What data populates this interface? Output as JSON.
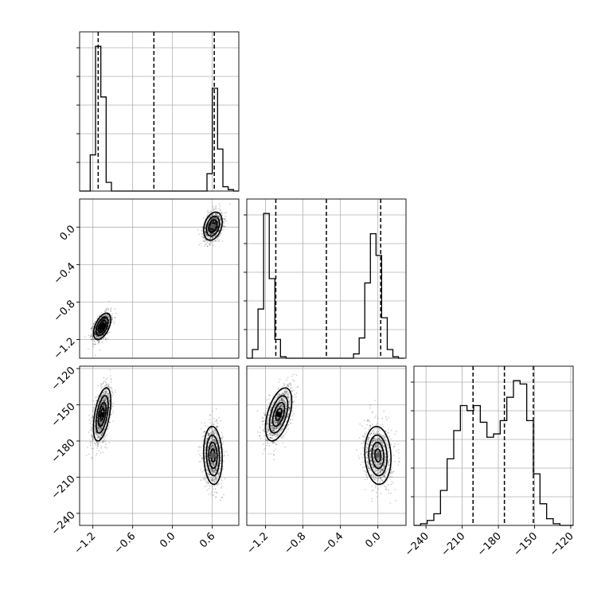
{
  "chart_data": {
    "type": "corner",
    "variables": [
      {
        "range": [
          -1.4,
          1.0
        ],
        "ticks": [
          -1.2,
          -0.6,
          0.0,
          0.6
        ],
        "tick_labels": [
          "−1.2",
          "−0.6",
          "0.0",
          "0.6"
        ],
        "quantiles": [
          -1.12,
          -0.28,
          0.63
        ],
        "hist": {
          "edges": [
            -1.4,
            -1.32,
            -1.24,
            -1.16,
            -1.08,
            -1.0,
            -0.92,
            -0.84,
            -0.76,
            -0.68,
            -0.6,
            -0.52,
            -0.44,
            -0.36,
            -0.28,
            -0.2,
            -0.12,
            -0.04,
            0.04,
            0.12,
            0.2,
            0.28,
            0.36,
            0.44,
            0.52,
            0.6,
            0.68,
            0.76,
            0.84,
            0.92,
            1.0
          ],
          "counts": [
            0,
            0,
            0.25,
            1.0,
            0.65,
            0.06,
            0,
            0,
            0,
            0,
            0,
            0,
            0,
            0,
            0,
            0,
            0,
            0,
            0,
            0,
            0,
            0,
            0,
            0,
            0.12,
            0.71,
            0.29,
            0.03,
            0.01,
            0
          ]
        }
      },
      {
        "range": [
          -1.4,
          0.3
        ],
        "ticks": [
          -1.2,
          -0.8,
          -0.4,
          0.0
        ],
        "tick_labels": [
          "−1.2",
          "−0.8",
          "−0.4",
          "0.0"
        ],
        "quantiles": [
          -1.09,
          -0.55,
          0.03
        ],
        "hist": {
          "edges": [
            -1.4,
            -1.34,
            -1.28,
            -1.22,
            -1.16,
            -1.1,
            -1.04,
            -0.98,
            -0.92,
            -0.86,
            -0.8,
            -0.74,
            -0.68,
            -0.62,
            -0.56,
            -0.5,
            -0.44,
            -0.38,
            -0.32,
            -0.26,
            -0.2,
            -0.14,
            -0.08,
            -0.02,
            0.04,
            0.1,
            0.16,
            0.22,
            0.28
          ],
          "counts": [
            0,
            0.06,
            0.34,
            1.0,
            0.55,
            0.13,
            0.01,
            0,
            0,
            0,
            0,
            0,
            0,
            0,
            0,
            0,
            0,
            0,
            0,
            0.03,
            0.14,
            0.52,
            0.86,
            0.71,
            0.28,
            0.06,
            0.01,
            0
          ]
        }
      },
      {
        "range": [
          -250,
          -118
        ],
        "ticks": [
          -240,
          -210,
          -180,
          -150,
          -120
        ],
        "tick_labels": [
          "−240",
          "−210",
          "−180",
          "−150",
          "−120"
        ],
        "quantiles": [
          -201,
          -175,
          -151
        ],
        "hist": {
          "edges": [
            -250,
            -244.5,
            -239,
            -233.5,
            -228,
            -222.5,
            -217,
            -211.5,
            -206,
            -200.5,
            -195,
            -189.5,
            -184,
            -178.5,
            -173,
            -167.5,
            -162,
            -156.5,
            -151,
            -145.5,
            -140,
            -134.5,
            -129,
            -123.5,
            -118
          ],
          "counts": [
            0,
            0.01,
            0.03,
            0.07,
            0.21,
            0.4,
            0.57,
            0.72,
            0.69,
            0.72,
            0.62,
            0.53,
            0.55,
            0.63,
            0.77,
            0.87,
            0.85,
            0.63,
            0.31,
            0.13,
            0.04,
            0.01,
            0,
            0
          ]
        }
      }
    ],
    "pairs": [
      {
        "x_var": 0,
        "y_var": 1,
        "blobs": [
          {
            "cx": -1.06,
            "cy": -1.06,
            "sx": 0.065,
            "sy": 0.07,
            "rho": 0.5,
            "n": 1300
          },
          {
            "cx": 0.61,
            "cy": 0.01,
            "sx": 0.07,
            "sy": 0.075,
            "rho": 0.3,
            "n": 1100
          }
        ]
      },
      {
        "x_var": 0,
        "y_var": 2,
        "blobs": [
          {
            "cx": -1.06,
            "cy": -158,
            "sx": 0.065,
            "sy": 11,
            "rho": 0.5,
            "n": 1300
          },
          {
            "cx": 0.61,
            "cy": -192,
            "sx": 0.07,
            "sy": 12,
            "rho": -0.1,
            "n": 1100
          }
        ]
      },
      {
        "x_var": 1,
        "y_var": 2,
        "blobs": [
          {
            "cx": -1.06,
            "cy": -158,
            "sx": 0.07,
            "sy": 11,
            "rho": 0.5,
            "n": 1300
          },
          {
            "cx": 0.0,
            "cy": -192,
            "sx": 0.07,
            "sy": 12,
            "rho": -0.1,
            "n": 1100
          }
        ]
      }
    ],
    "grid": true,
    "colors": {
      "line": "#000000",
      "grid": "#b0b0b0",
      "points": "#000000"
    }
  }
}
